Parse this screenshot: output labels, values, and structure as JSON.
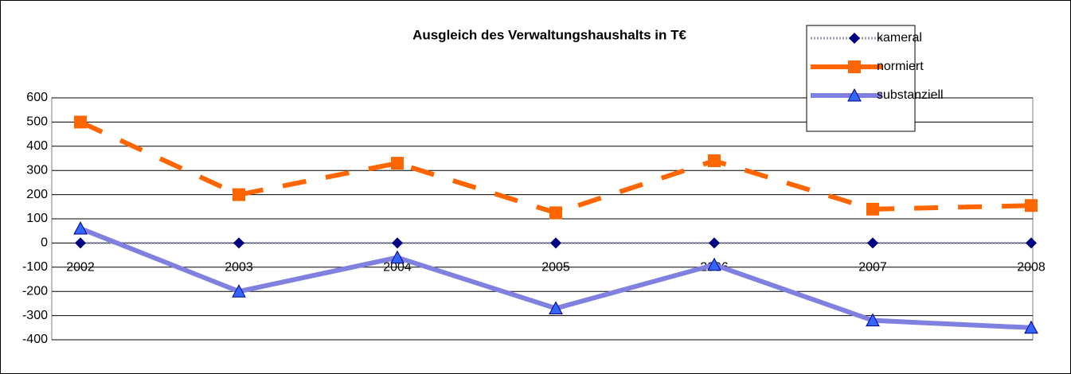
{
  "chart_data": {
    "type": "line",
    "title": "Ausgleich des Verwaltungshaushalts in T€",
    "categories": [
      "2002",
      "2003",
      "2004",
      "2005",
      "2006",
      "2007",
      "2008"
    ],
    "series": [
      {
        "name": "kameral",
        "color": "#000080",
        "values": [
          0,
          0,
          0,
          0,
          0,
          0,
          0
        ]
      },
      {
        "name": "normiert",
        "color": "#ff6600",
        "values": [
          500,
          200,
          330,
          125,
          340,
          140,
          155
        ]
      },
      {
        "name": "substanziell",
        "color": "#3366ff",
        "values": [
          60,
          -200,
          -60,
          -270,
          -90,
          -320,
          -350
        ]
      }
    ],
    "ylim": [
      -400,
      600
    ],
    "yticks": [
      -400,
      -300,
      -200,
      -100,
      0,
      100,
      200,
      300,
      400,
      500,
      600
    ],
    "grid": true,
    "legend": "top-right"
  }
}
